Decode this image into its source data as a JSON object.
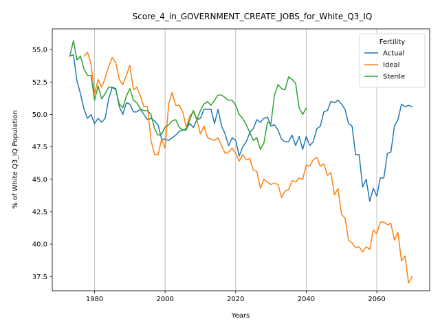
{
  "chart_data": {
    "type": "line",
    "title": "Score_4_in_GOVERNMENT_CREATE_JOBS_for_White_Q3_IQ",
    "xlabel": "Years",
    "ylabel": "% of White Q3_IQ Population",
    "xlim": [
      1968,
      2075
    ],
    "ylim": [
      36.4,
      56.6
    ],
    "xticks": [
      1980,
      2000,
      2020,
      2040,
      2060
    ],
    "yticks": [
      37.5,
      40.0,
      42.5,
      45.0,
      47.5,
      50.0,
      52.5,
      55.0
    ],
    "xtick_labels": [
      "1980",
      "2000",
      "2020",
      "2040",
      "2060"
    ],
    "ytick_labels": [
      "37.5",
      "40.0",
      "42.5",
      "45.0",
      "47.5",
      "50.0",
      "52.5",
      "55.0"
    ],
    "grid": "x-only",
    "legend": {
      "title": "Fertility",
      "placement": "top-right"
    },
    "series": [
      {
        "name": "Actual",
        "color": "#1f77b4",
        "x": [
          1973,
          1974,
          1975,
          1976,
          1977,
          1978,
          1979,
          1980,
          1981,
          1982,
          1983,
          1984,
          1985,
          1986,
          1987,
          1988,
          1989,
          1990,
          1991,
          1992,
          1993,
          1994,
          1995,
          1996,
          1997,
          1998,
          1999,
          2000,
          2001,
          2002,
          2003,
          2004,
          2005,
          2006,
          2007,
          2008,
          2009,
          2010,
          2011,
          2012,
          2013,
          2014,
          2015,
          2016,
          2017,
          2018,
          2019,
          2020,
          2021,
          2022,
          2023,
          2024,
          2025,
          2026,
          2027,
          2028,
          2029,
          2030,
          2031,
          2032,
          2033,
          2034,
          2035,
          2036,
          2037,
          2038,
          2039,
          2040,
          2041,
          2042,
          2043,
          2044,
          2045,
          2046,
          2047,
          2048,
          2049,
          2050,
          2051,
          2052,
          2053,
          2054,
          2055,
          2056,
          2057,
          2058,
          2059,
          2060,
          2061,
          2062,
          2063,
          2064,
          2065,
          2066,
          2067,
          2068,
          2069,
          2070
        ],
        "values": [
          54.5,
          54.6,
          52.6,
          51.6,
          50.4,
          49.7,
          50.0,
          49.3,
          49.7,
          49.4,
          49.7,
          51.2,
          52.1,
          52.0,
          50.6,
          50.0,
          50.9,
          50.8,
          50.2,
          50.2,
          50.4,
          50.0,
          49.6,
          49.7,
          49.5,
          49.2,
          48.1,
          48.1,
          48.0,
          48.2,
          48.4,
          48.7,
          48.8,
          48.9,
          49.3,
          49.0,
          49.6,
          49.7,
          50.4,
          50.4,
          50.4,
          49.3,
          50.4,
          49.1,
          48.5,
          47.6,
          48.2,
          48.0,
          46.8,
          47.5,
          47.9,
          48.6,
          48.9,
          49.6,
          49.4,
          49.7,
          49.8,
          49.1,
          49.2,
          48.8,
          48.1,
          47.9,
          47.9,
          48.4,
          47.6,
          48.3,
          47.3,
          48.3,
          47.6,
          47.9,
          48.9,
          49.1,
          50.2,
          50.3,
          51.0,
          50.9,
          51.1,
          50.8,
          50.4,
          49.3,
          49.1,
          46.9,
          46.9,
          44.4,
          45.0,
          43.3,
          44.3,
          43.7,
          45.1,
          45.1,
          47.0,
          47.1,
          49.1,
          49.6,
          50.8,
          50.6,
          50.7,
          50.6
        ]
      },
      {
        "name": "Ideal",
        "color": "#ff7f0e",
        "x": [
          1977,
          1978,
          1979,
          1980,
          1981,
          1982,
          1983,
          1984,
          1985,
          1986,
          1987,
          1988,
          1989,
          1990,
          1991,
          1992,
          1993,
          1994,
          1995,
          1996,
          1997,
          1998,
          1999,
          2000,
          2001,
          2002,
          2003,
          2004,
          2005,
          2006,
          2007,
          2008,
          2009,
          2010,
          2011,
          2012,
          2013,
          2014,
          2015,
          2016,
          2017,
          2018,
          2019,
          2020,
          2021,
          2022,
          2023,
          2024,
          2025,
          2026,
          2027,
          2028,
          2029,
          2030,
          2031,
          2032,
          2033,
          2034,
          2035,
          2036,
          2037,
          2038,
          2039,
          2040,
          2041,
          2042,
          2043,
          2044,
          2045,
          2046,
          2047,
          2048,
          2049,
          2050,
          2051,
          2052,
          2053,
          2054,
          2055,
          2056,
          2057,
          2058,
          2059,
          2060,
          2061,
          2062,
          2063,
          2064,
          2065,
          2066,
          2067,
          2068,
          2069,
          2070
        ],
        "values": [
          54.5,
          54.8,
          53.9,
          51.6,
          52.7,
          52.1,
          52.8,
          53.7,
          54.4,
          54.0,
          52.7,
          52.3,
          53.0,
          53.8,
          51.9,
          52.1,
          51.4,
          50.6,
          50.6,
          48.0,
          46.9,
          46.9,
          48.1,
          47.4,
          50.8,
          51.7,
          50.7,
          50.7,
          50.2,
          49.0,
          49.9,
          50.2,
          49.6,
          48.5,
          49.1,
          48.2,
          48.1,
          48.0,
          48.2,
          47.6,
          47.0,
          47.1,
          47.4,
          47.0,
          46.4,
          46.9,
          46.5,
          46.6,
          45.7,
          45.6,
          44.3,
          45.0,
          44.8,
          44.6,
          44.7,
          44.6,
          43.6,
          44.1,
          44.2,
          44.9,
          44.8,
          45.1,
          45.0,
          46.1,
          46.0,
          46.5,
          46.7,
          46.0,
          46.2,
          45.3,
          45.5,
          43.8,
          44.3,
          42.3,
          42.0,
          40.3,
          40.1,
          39.7,
          39.8,
          39.4,
          39.8,
          39.6,
          41.1,
          40.8,
          41.7,
          41.7,
          41.5,
          41.6,
          40.3,
          40.9,
          38.7,
          39.1,
          37.0,
          37.5
        ]
      },
      {
        "name": "Sterile",
        "color": "#2ca02c",
        "x": [
          1973,
          1974,
          1975,
          1976,
          1977,
          1978,
          1979,
          1980,
          1981,
          1982,
          1983,
          1984,
          1985,
          1986,
          1987,
          1988,
          1989,
          1990,
          1991,
          1992,
          1993,
          1994,
          1995,
          1996,
          1997,
          1998,
          1999,
          2000,
          2001,
          2002,
          2003,
          2004,
          2005,
          2006,
          2007,
          2008,
          2009,
          2010,
          2011,
          2012,
          2013,
          2014,
          2015,
          2016,
          2017,
          2018,
          2019,
          2020,
          2021,
          2022,
          2023,
          2024,
          2025,
          2026,
          2027,
          2028,
          2029,
          2030,
          2031,
          2032,
          2033,
          2034,
          2035,
          2036,
          2037,
          2038,
          2039,
          2040
        ],
        "values": [
          54.5,
          55.7,
          54.2,
          54.5,
          53.5,
          53.0,
          53.0,
          51.1,
          52.2,
          51.2,
          51.6,
          52.1,
          52.1,
          51.9,
          50.8,
          50.5,
          51.4,
          52.0,
          51.1,
          50.9,
          50.4,
          50.3,
          50.3,
          50.0,
          48.9,
          48.4,
          48.5,
          49.0,
          49.2,
          49.5,
          49.6,
          49.0,
          48.8,
          48.8,
          49.6,
          50.3,
          49.6,
          50.3,
          50.8,
          51.0,
          50.7,
          51.1,
          51.5,
          51.5,
          51.3,
          51.1,
          51.1,
          50.7,
          50.0,
          49.7,
          49.2,
          48.6,
          48.0,
          48.2,
          47.3,
          47.8,
          49.4,
          49.3,
          51.5,
          52.3,
          52.0,
          51.9,
          52.9,
          52.7,
          52.4,
          50.5,
          50.0,
          50.5
        ]
      }
    ]
  }
}
